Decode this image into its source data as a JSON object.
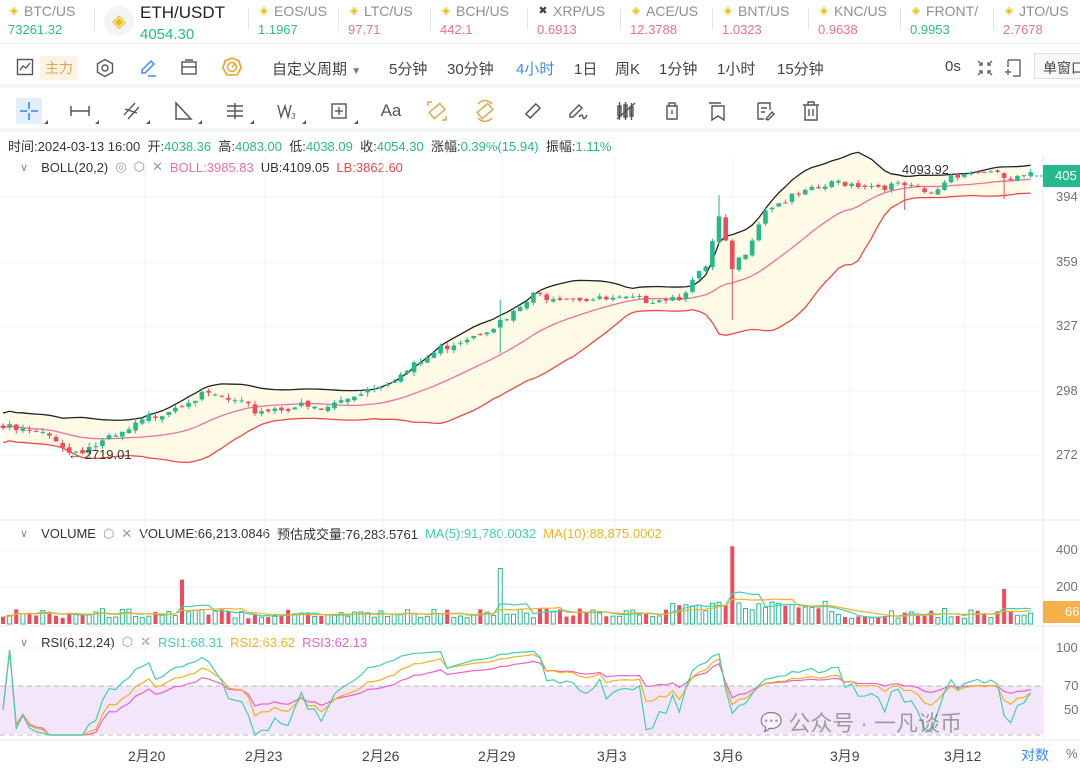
{
  "tickers": [
    {
      "symbol": "BTC/US",
      "price": "73261.32",
      "dir": "up"
    },
    {
      "symbol": "ETH/USDT",
      "price": "4054.30",
      "dir": "up",
      "active": true
    },
    {
      "symbol": "EOS/US",
      "price": "1.1967",
      "dir": "up"
    },
    {
      "symbol": "LTC/US",
      "price": "97.71",
      "dir": "dn"
    },
    {
      "symbol": "BCH/US",
      "price": "442.1",
      "dir": "dn"
    },
    {
      "symbol": "XRP/US",
      "price": "0.6913",
      "dir": "dn"
    },
    {
      "symbol": "ACE/US",
      "price": "12.3788",
      "dir": "dn"
    },
    {
      "symbol": "BNT/US",
      "price": "1.0323",
      "dir": "dn"
    },
    {
      "symbol": "KNC/US",
      "price": "0.9638",
      "dir": "dn"
    },
    {
      "symbol": "FRONT/",
      "price": "0.9953",
      "dir": "up"
    },
    {
      "symbol": "JTO/US",
      "price": "2.7678",
      "dir": "dn"
    }
  ],
  "toolbar": {
    "main_force": "主力",
    "custom_period": "自定义周期",
    "periods": [
      "5分钟",
      "30分钟",
      "4小时",
      "1日",
      "周K",
      "1分钟",
      "1小时",
      "15分钟"
    ],
    "active_period": "4小时",
    "countdown": "0s",
    "single_window": "单窗口"
  },
  "info": {
    "time_label": "时间:",
    "time": "2024-03-13 16:00",
    "open_label": "开:",
    "open": "4038.36",
    "high_label": "高:",
    "high": "4083.00",
    "low_label": "低:",
    "low": "4038.09",
    "close_label": "收:",
    "close": "4054.30",
    "change_label": "涨幅:",
    "change": "0.39%(15.94)",
    "amp_label": "振幅:",
    "amp": "1.11%"
  },
  "boll": {
    "name": "BOLL(20,2)",
    "mid": "BOLL:3985.83",
    "ub": "UB:4109.05",
    "lb": "LB:3862.60",
    "color_mid": "#f06fa0",
    "color_lb": "#f04848"
  },
  "volume": {
    "name": "VOLUME",
    "value": "VOLUME:66,213.0846",
    "estimate": "预估成交量:76,283.5761",
    "ma5": "MA(5):91,780.0032",
    "ma10": "MA(10):88,875.0002"
  },
  "rsi": {
    "name": "RSI(6,12,24)",
    "rsi1": "RSI1:68.31",
    "rsi2": "RSI2:63.62",
    "rsi3": "RSI3:62.13"
  },
  "price_axis": [
    "405",
    "394",
    "359",
    "327",
    "298",
    "272"
  ],
  "volume_axis": [
    "400",
    "200",
    "66"
  ],
  "rsi_axis": [
    "100",
    "70",
    "50"
  ],
  "annotations": {
    "high": "4093.92",
    "low": "← 2719.01"
  },
  "date_axis": [
    "2月20",
    "2月23",
    "2月26",
    "2月29",
    "3月3",
    "3月6",
    "3月9",
    "3月12"
  ],
  "axis_mode": {
    "log": "对数",
    "percent": "%"
  },
  "watermark": "公众号 · 一凡谈币",
  "colors": {
    "up": "#26b98c",
    "down": "#ef4b5a",
    "accent": "#3a8bf0"
  },
  "chart_data": {
    "type": "candlestick",
    "interval": "4h",
    "symbol": "ETH/USDT",
    "approx_close_anchors": [
      [
        0,
        2830
      ],
      [
        8,
        2790
      ],
      [
        10,
        2730
      ],
      [
        14,
        2760
      ],
      [
        18,
        2800
      ],
      [
        22,
        2870
      ],
      [
        28,
        2950
      ],
      [
        32,
        2960
      ],
      [
        38,
        2900
      ],
      [
        44,
        2920
      ],
      [
        48,
        2900
      ],
      [
        54,
        2980
      ],
      [
        60,
        3050
      ],
      [
        66,
        3170
      ],
      [
        72,
        3250
      ],
      [
        76,
        3300
      ],
      [
        80,
        3420
      ],
      [
        85,
        3420
      ],
      [
        90,
        3400
      ],
      [
        96,
        3400
      ],
      [
        102,
        3420
      ],
      [
        106,
        3560
      ],
      [
        108,
        3820
      ],
      [
        110,
        3550
      ],
      [
        112,
        3650
      ],
      [
        115,
        3880
      ],
      [
        120,
        3950
      ],
      [
        126,
        4020
      ],
      [
        132,
        4000
      ],
      [
        136,
        4000
      ],
      [
        140,
        3950
      ],
      [
        143,
        4060
      ],
      [
        148,
        4080
      ],
      [
        152,
        4030
      ],
      [
        155,
        4054
      ]
    ],
    "volume_spikes": [
      [
        27,
        240
      ],
      [
        75,
        300
      ],
      [
        110,
        420
      ],
      [
        151,
        190
      ]
    ],
    "ylim": [
      2650,
      4120
    ]
  }
}
